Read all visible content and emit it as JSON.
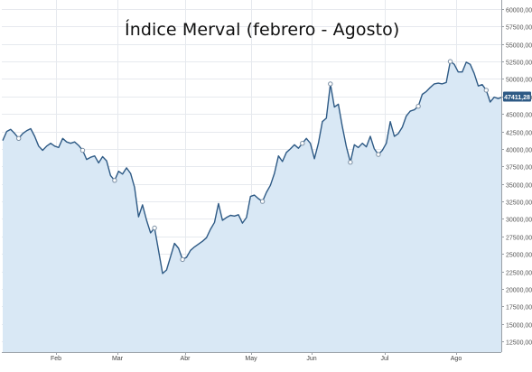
{
  "chart_data": {
    "type": "area",
    "title": "Índice Merval (febrero - Agosto)",
    "xlabel": "",
    "ylabel": "",
    "x_tick_labels": [
      "Feb",
      "Mar",
      "Abr",
      "May",
      "Jun",
      "Jul",
      "Ago"
    ],
    "y_ticks": [
      12500,
      15000,
      17500,
      20000,
      22500,
      25000,
      27500,
      30000,
      32500,
      35000,
      37500,
      40000,
      42500,
      45000,
      47500,
      50000,
      52500,
      55000,
      57500,
      60000
    ],
    "y_tick_labels": [
      "12500,00",
      "15000,00",
      "17500,00",
      "20000,00",
      "22500,00",
      "25000,00",
      "27500,00",
      "30000,00",
      "32500,00",
      "35000,00",
      "37500,00",
      "40000,00",
      "42500,00",
      "45000,00",
      "47500,00",
      "50000,00",
      "52500,00",
      "55000,00",
      "57500,00",
      "60000,00"
    ],
    "ylim": [
      10000,
      61000
    ],
    "grid": true,
    "last_value_label": "47411,28",
    "series": [
      {
        "values": [
          41200,
          42500,
          42800,
          42200,
          41500,
          42200,
          42600,
          42900,
          41800,
          40400,
          39800,
          40400,
          40800,
          40400,
          40200,
          41500,
          41000,
          40800,
          41000,
          40500,
          39800,
          38500,
          38800,
          39000,
          38000,
          38900,
          38300,
          36200,
          35500,
          36800,
          36400,
          37300,
          36500,
          34500,
          30300,
          32000,
          29800,
          28000,
          28700,
          25500,
          22200,
          22700,
          24600,
          26500,
          25800,
          24200,
          24500,
          25500,
          26000,
          26400,
          26800,
          27300,
          28500,
          29500,
          32200,
          29800,
          30200,
          30500,
          30400,
          30600,
          29400,
          30200,
          33200,
          33400,
          32900,
          32500,
          33800,
          34800,
          36500,
          39000,
          38200,
          39500,
          40000,
          40600,
          40100,
          40800,
          41500,
          40800,
          38600,
          40800,
          43900,
          44400,
          49300,
          46000,
          46400,
          43200,
          40300,
          38100,
          40600,
          40200,
          40800,
          40300,
          41800,
          40000,
          39200,
          39800,
          40800,
          43900,
          41800,
          42200,
          43100,
          44700,
          45400,
          45600,
          46100,
          47800,
          48200,
          48800,
          49300,
          49400,
          49300,
          49500,
          52500,
          52100,
          51000,
          51000,
          52400,
          52100,
          50800,
          49000,
          49200,
          48400,
          46700,
          47400,
          47200,
          47411.28
        ]
      }
    ]
  }
}
